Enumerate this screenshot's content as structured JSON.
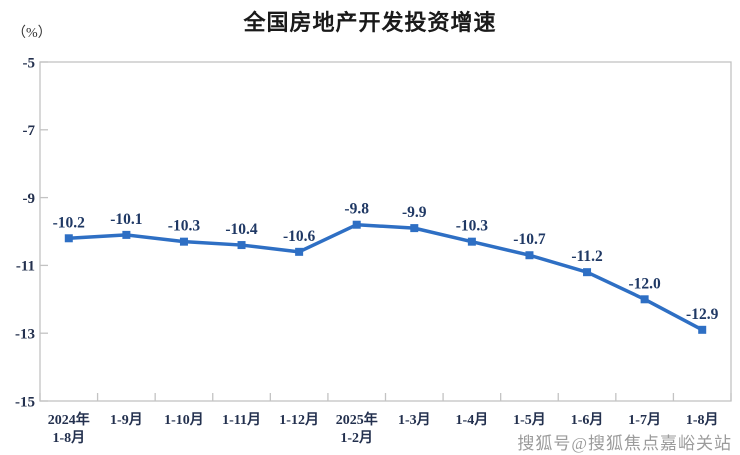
{
  "header": {
    "title": "全国房地产开发投资增速",
    "unit_label": "（%）"
  },
  "watermark": {
    "text": "搜狐号@搜狐焦点嘉峪关站"
  },
  "chart_data": {
    "type": "line",
    "title": "全国房地产开发投资增速",
    "unit": "(%)",
    "categories": [
      "2024年\n1-8月",
      "1-9月",
      "1-10月",
      "1-11月",
      "1-12月",
      "2025年\n1-2月",
      "1-3月",
      "1-4月",
      "1-5月",
      "1-6月",
      "1-7月",
      "1-8月"
    ],
    "values": [
      -10.2,
      -10.1,
      -10.3,
      -10.4,
      -10.6,
      -9.8,
      -9.9,
      -10.3,
      -10.7,
      -11.2,
      -12.0,
      -12.9
    ],
    "point_labels": [
      "-10.2",
      "-10.1",
      "-10.3",
      "-10.4",
      "-10.6",
      "-9.8",
      "-9.9",
      "-10.3",
      "-10.7",
      "-11.2",
      "-12.0",
      "-12.9"
    ],
    "ylim": [
      -15,
      -5
    ],
    "yticks": [
      -5,
      -7,
      -9,
      -11,
      -13,
      -15
    ],
    "ytick_labels": [
      "-5",
      "-7",
      "-9",
      "-11",
      "-13",
      "-15"
    ],
    "grid": false,
    "legend": "none",
    "line_color": "#2E6FC4",
    "marker_color": "#2E6FC4",
    "label_color": "#1F3864",
    "tick_label_color": "#23304E",
    "axis_color": "#C3C3C3"
  }
}
